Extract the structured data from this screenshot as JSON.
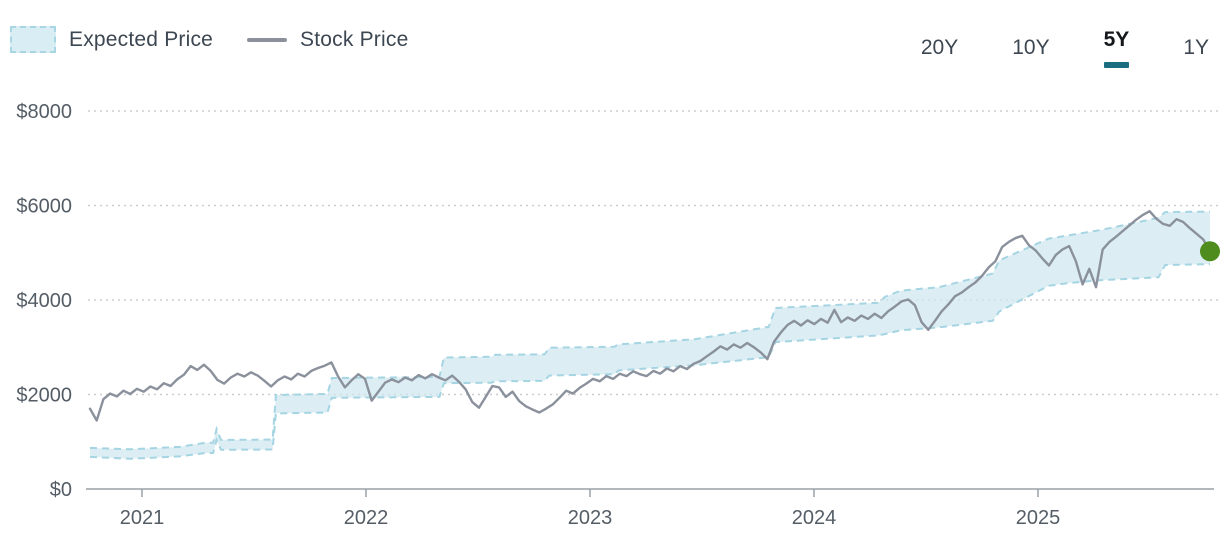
{
  "legend": {
    "items": [
      {
        "label": "Expected Price",
        "type": "band",
        "swatch_color": "#d9edf4",
        "swatch_border": "#a8d6e3"
      },
      {
        "label": "Stock Price",
        "type": "line",
        "line_color": "#8b919c"
      }
    ]
  },
  "range_selector": {
    "options": [
      {
        "label": "20Y",
        "active": false
      },
      {
        "label": "10Y",
        "active": false
      },
      {
        "label": "5Y",
        "active": true
      },
      {
        "label": "1Y",
        "active": false
      }
    ],
    "active_underline_color": "#1a6e80"
  },
  "chart_data": {
    "type": "line",
    "window": "5Y",
    "x_axis": {
      "tick_labels": [
        "2021",
        "2022",
        "2023",
        "2024",
        "2025"
      ],
      "x_unit": "years_from_window_start",
      "x_range": [
        0,
        5
      ]
    },
    "y_axis": {
      "tick_labels": [
        "$0",
        "$2000",
        "$4000",
        "$6000",
        "$8000"
      ],
      "tick_values": [
        0,
        2000,
        4000,
        6000,
        8000
      ],
      "ylim": [
        0,
        8000
      ],
      "grid": "dotted"
    },
    "series": [
      {
        "name": "Expected Price",
        "type": "band",
        "points_format": [
          "t_years",
          "lower",
          "upper"
        ],
        "points": [
          [
            0.0,
            680,
            870
          ],
          [
            0.18,
            640,
            840
          ],
          [
            0.4,
            690,
            890
          ],
          [
            0.51,
            760,
            975
          ],
          [
            0.55,
            765,
            980
          ],
          [
            0.565,
            1040,
            1270
          ],
          [
            0.585,
            830,
            1040
          ],
          [
            0.815,
            835,
            1045
          ],
          [
            0.83,
            1600,
            1990
          ],
          [
            1.06,
            1620,
            2010
          ],
          [
            1.08,
            1930,
            2350
          ],
          [
            1.56,
            1950,
            2370
          ],
          [
            1.58,
            2240,
            2780
          ],
          [
            1.79,
            2250,
            2800
          ],
          [
            1.81,
            2280,
            2840
          ],
          [
            2.03,
            2290,
            2850
          ],
          [
            2.05,
            2400,
            2990
          ],
          [
            2.34,
            2430,
            3010
          ],
          [
            2.36,
            2510,
            3060
          ],
          [
            2.7,
            2620,
            3170
          ],
          [
            3.03,
            2790,
            3430
          ],
          [
            3.06,
            3110,
            3830
          ],
          [
            3.52,
            3250,
            3940
          ],
          [
            3.55,
            3280,
            4070
          ],
          [
            3.62,
            3360,
            4200
          ],
          [
            3.79,
            3420,
            4270
          ],
          [
            4.03,
            3560,
            4560
          ],
          [
            4.06,
            3760,
            4840
          ],
          [
            4.28,
            4300,
            5300
          ],
          [
            4.37,
            4360,
            5370
          ],
          [
            4.51,
            4420,
            5480
          ],
          [
            4.77,
            4480,
            5740
          ],
          [
            4.8,
            4740,
            5860
          ],
          [
            5.0,
            4760,
            5870
          ]
        ]
      },
      {
        "name": "Stock Price",
        "type": "line",
        "x_unit": "years_from_window_start",
        "x_range": [
          0,
          5
        ],
        "values": [
          1700,
          1450,
          1900,
          2020,
          1960,
          2080,
          2010,
          2120,
          2060,
          2170,
          2110,
          2240,
          2180,
          2320,
          2420,
          2600,
          2520,
          2630,
          2500,
          2310,
          2230,
          2360,
          2440,
          2380,
          2470,
          2400,
          2290,
          2170,
          2300,
          2380,
          2320,
          2440,
          2380,
          2500,
          2560,
          2610,
          2680,
          2380,
          2150,
          2300,
          2430,
          2330,
          1870,
          2060,
          2250,
          2320,
          2260,
          2360,
          2300,
          2410,
          2340,
          2430,
          2360,
          2300,
          2400,
          2270,
          2110,
          1840,
          1720,
          1950,
          2180,
          2150,
          1950,
          2060,
          1860,
          1750,
          1680,
          1620,
          1700,
          1790,
          1930,
          2080,
          2020,
          2140,
          2230,
          2330,
          2280,
          2390,
          2330,
          2440,
          2390,
          2490,
          2430,
          2390,
          2500,
          2440,
          2550,
          2490,
          2600,
          2540,
          2650,
          2710,
          2810,
          2910,
          3020,
          2950,
          3060,
          2990,
          3090,
          3000,
          2890,
          2750,
          3120,
          3310,
          3470,
          3560,
          3460,
          3570,
          3490,
          3600,
          3520,
          3790,
          3530,
          3630,
          3560,
          3670,
          3600,
          3710,
          3620,
          3760,
          3860,
          3970,
          4010,
          3890,
          3530,
          3370,
          3560,
          3760,
          3910,
          4080,
          4160,
          4270,
          4370,
          4510,
          4690,
          4820,
          5120,
          5230,
          5310,
          5360,
          5160,
          5050,
          4880,
          4730,
          4950,
          5070,
          5140,
          4820,
          4330,
          4660,
          4270,
          5070,
          5230,
          5340,
          5460,
          5580,
          5700,
          5800,
          5880,
          5720,
          5610,
          5570,
          5710,
          5650,
          5520,
          5400,
          5280,
          5030
        ]
      }
    ],
    "end_marker": {
      "series": "Stock Price",
      "value": 5030,
      "color": "#4d8c1d"
    },
    "colors": {
      "band_fill": "#cfe8f0",
      "band_edge": "#a5d4e2",
      "stock_line": "#8b919c",
      "grid_line": "#cdced0",
      "axis_line": "#b3b8bc",
      "tick_mark": "#9aa0a6",
      "axis_text": "#545d66"
    },
    "layout": {
      "legend_position": "top-left",
      "grid": "horizontal-dotted"
    }
  }
}
